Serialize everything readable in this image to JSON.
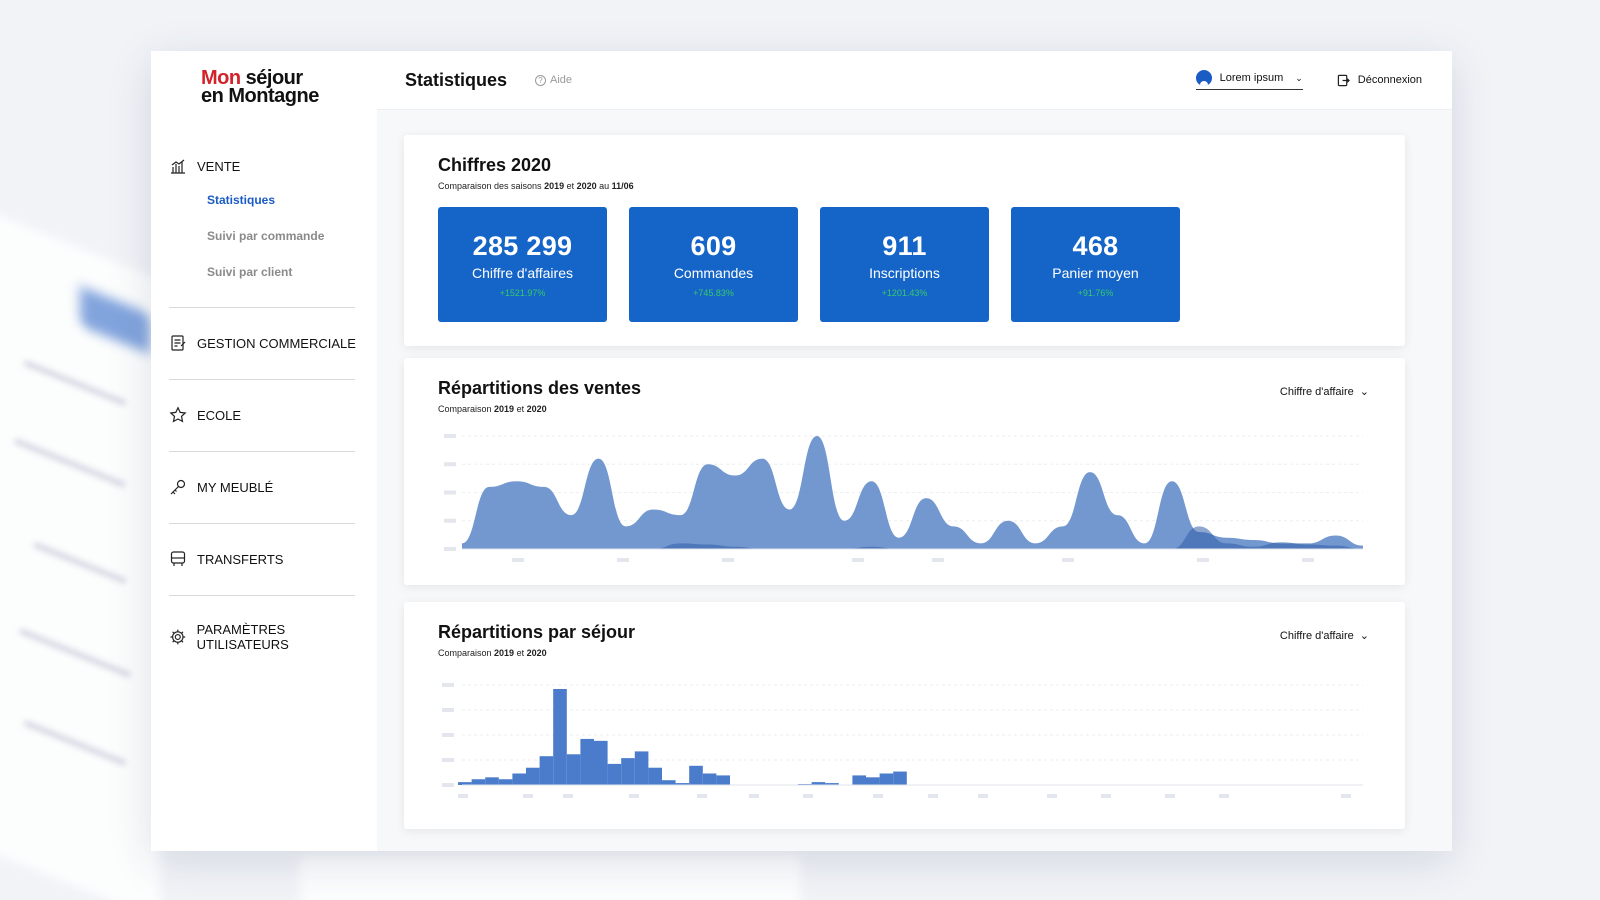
{
  "brand": {
    "line1_red": "Mon",
    "line1": " séjour",
    "line2": "en Montagne"
  },
  "sidebar": {
    "sections": [
      {
        "label": "VENTE",
        "icon": "chart-icon"
      },
      {
        "label": "GESTION COMMERCIALE",
        "icon": "document-edit-icon"
      },
      {
        "label": "ECOLE",
        "icon": "star-icon"
      },
      {
        "label": "MY MEUBLÉ",
        "icon": "key-icon"
      },
      {
        "label": "TRANSFERTS",
        "icon": "bus-icon"
      },
      {
        "label": "PARAMÈTRES UTILISATEURS",
        "icon": "gear-icon"
      }
    ],
    "vente_items": [
      {
        "label": "Statistiques",
        "active": true
      },
      {
        "label": "Suivi par commande",
        "active": false
      },
      {
        "label": "Suivi par client",
        "active": false
      }
    ]
  },
  "header": {
    "title": "Statistiques",
    "help": "Aide",
    "user": "Lorem ipsum",
    "logout": "Déconnexion"
  },
  "figures": {
    "title": "Chiffres 2020",
    "subtitle_pre": "Comparaison des saisons ",
    "subtitle_y1": "2019",
    "subtitle_mid": " et ",
    "subtitle_y2": "2020",
    "subtitle_post": " au ",
    "subtitle_date": "11/06",
    "kpis": [
      {
        "value": "285 299",
        "label": "Chiffre d'affaires",
        "delta": "+1521.97%"
      },
      {
        "value": "609",
        "label": "Commandes",
        "delta": "+745.83%"
      },
      {
        "value": "911",
        "label": "Inscriptions",
        "delta": "+1201.43%"
      },
      {
        "value": "468",
        "label": "Panier moyen",
        "delta": "+91.76%"
      }
    ]
  },
  "sales": {
    "title": "Répartitions des ventes",
    "subtitle_pre": "Comparaison ",
    "y1": "2019",
    "mid": " et ",
    "y2": "2020",
    "dropdown": "Chiffre d'affaire",
    "accent": "#5b86c8"
  },
  "stays": {
    "title": "Répartitions par séjour",
    "subtitle_pre": "Comparaison ",
    "y1": "2019",
    "mid": " et ",
    "y2": "2020",
    "dropdown": "Chiffre d'affaire",
    "accent": "#4a7ccb"
  },
  "chart_data": [
    {
      "type": "area",
      "series": [
        {
          "values": [
            0.05,
            0.55,
            0.6,
            0.55,
            0.3,
            0.8,
            0.2,
            0.35,
            0.3,
            0.75,
            0.65,
            0.8,
            0.35,
            1.0,
            0.25,
            0.6,
            0.1,
            0.45,
            0.2,
            0.05,
            0.25,
            0.05,
            0.2,
            0.68,
            0.3,
            0.05,
            0.6,
            0.15,
            0.1,
            0.08,
            0.05,
            0.05,
            0.12,
            0.03
          ]
        },
        {
          "values": [
            0,
            0,
            0,
            0,
            0,
            0,
            0,
            0,
            0.05,
            0.04,
            0.02,
            0,
            0,
            0,
            0,
            0.02,
            0,
            0,
            0,
            0,
            0,
            0,
            0,
            0,
            0,
            0,
            0,
            0.2,
            0.05,
            0.02,
            0.06,
            0.04,
            0.03,
            0
          ]
        }
      ]
    },
    {
      "type": "bar",
      "values": [
        0.03,
        0.06,
        0.08,
        0.06,
        0.12,
        0.18,
        0.3,
        1.0,
        0.32,
        0.48,
        0.46,
        0.22,
        0.28,
        0.35,
        0.18,
        0.05,
        0.02,
        0.2,
        0.12,
        0.1,
        0,
        0,
        0,
        0,
        0,
        0.01,
        0.03,
        0.02,
        0,
        0.1,
        0.08,
        0.12,
        0.14
      ]
    }
  ]
}
